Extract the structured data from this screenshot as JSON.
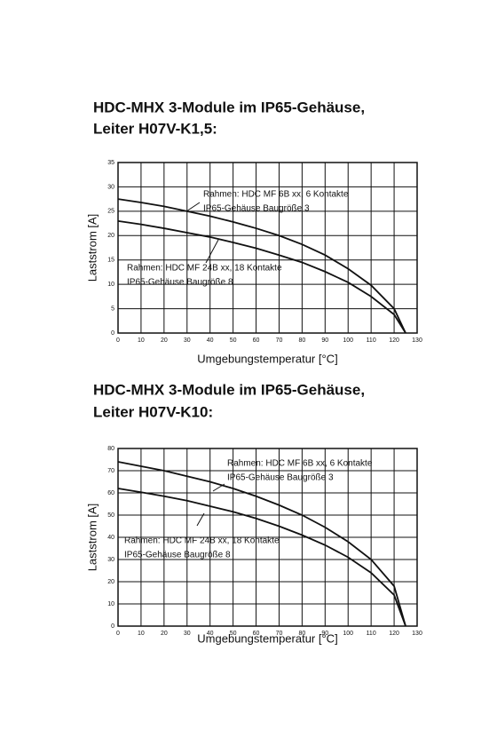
{
  "chart_data": [
    {
      "type": "line",
      "title": "HDC-MHX 3-Module im IP65-Gehäuse,",
      "subtitle": "Leiter H07V-K1,5:",
      "xlabel": "Umgebungstemperatur [°C]",
      "ylabel": "Laststrom [A]",
      "xlim": [
        0,
        130
      ],
      "xticks": [
        0,
        10,
        20,
        30,
        40,
        50,
        60,
        70,
        80,
        90,
        100,
        110,
        120,
        130
      ],
      "ylim": [
        0,
        35
      ],
      "yticks": [
        0,
        5,
        10,
        15,
        20,
        25,
        30,
        35
      ],
      "grid": true,
      "x": [
        0,
        10,
        20,
        30,
        40,
        50,
        60,
        70,
        80,
        90,
        100,
        110,
        120,
        125
      ],
      "series": [
        {
          "name": "Rahmen: HDC MF 6B xx, 6 Kontakte",
          "subname": "IP65-Gehäuse Baugröße 3",
          "color": "#111111",
          "values": [
            27.5,
            26.8,
            26,
            25,
            24,
            22.8,
            21.5,
            20,
            18.2,
            16,
            13.2,
            9.8,
            5,
            0
          ]
        },
        {
          "name": "Rahmen: HDC MF 24B xx, 18 Kontakte",
          "subname": "IP65-Gehäuse Baugröße 8",
          "color": "#111111",
          "values": [
            23,
            22.3,
            21.5,
            20.6,
            19.7,
            18.6,
            17.4,
            16,
            14.5,
            12.6,
            10.4,
            7.5,
            3.8,
            0
          ]
        }
      ]
    },
    {
      "type": "line",
      "title": "HDC-MHX 3-Module im IP65-Gehäuse,",
      "subtitle": "Leiter H07V-K10:",
      "xlabel": "Umgebungstemperatur [°C]",
      "ylabel": "Laststrom [A]",
      "xlim": [
        0,
        130
      ],
      "xticks": [
        0,
        10,
        20,
        30,
        40,
        50,
        60,
        70,
        80,
        90,
        100,
        110,
        120,
        130
      ],
      "ylim": [
        0,
        80
      ],
      "yticks": [
        0,
        10,
        20,
        30,
        40,
        50,
        60,
        70,
        80
      ],
      "grid": true,
      "x": [
        0,
        10,
        20,
        30,
        40,
        50,
        60,
        70,
        80,
        90,
        100,
        110,
        120,
        125
      ],
      "series": [
        {
          "name": "Rahmen: HDC MF 6B xx, 6 Kontakte",
          "subname": "IP65-Gehäuse Baugröße 3",
          "color": "#111111",
          "values": [
            74,
            72,
            70,
            67.5,
            65,
            62,
            58.5,
            54.5,
            50,
            44.5,
            38,
            30,
            18,
            0
          ]
        },
        {
          "name": "Rahmen: HDC MF 24B xx, 18 Kontakte",
          "subname": "IP65-Gehäuse Baugröße 8",
          "color": "#111111",
          "values": [
            62,
            60.3,
            58.5,
            56.5,
            54,
            51.5,
            48.5,
            45,
            41,
            36.5,
            31,
            24,
            14,
            0
          ]
        }
      ]
    }
  ]
}
